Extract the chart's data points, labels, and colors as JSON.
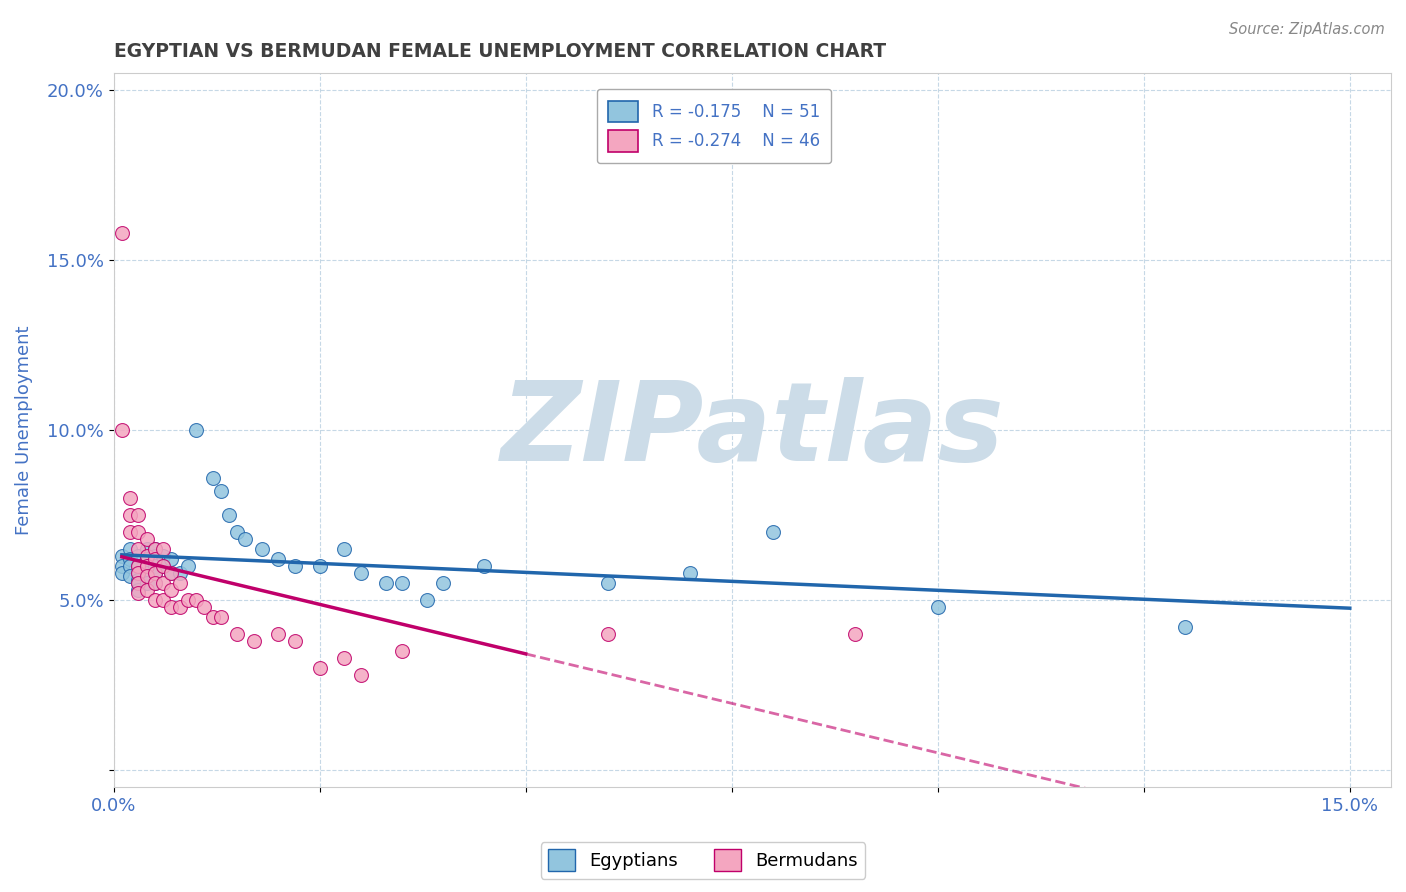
{
  "title": "EGYPTIAN VS BERMUDAN FEMALE UNEMPLOYMENT CORRELATION CHART",
  "source_text": "Source: ZipAtlas.com",
  "ylabel": "Female Unemployment",
  "xlim": [
    0.0,
    0.155
  ],
  "ylim": [
    -0.005,
    0.205
  ],
  "xticks": [
    0.0,
    0.025,
    0.05,
    0.075,
    0.1,
    0.125,
    0.15
  ],
  "xticklabels": [
    "0.0%",
    "",
    "",
    "",
    "",
    "",
    "15.0%"
  ],
  "yticks": [
    0.0,
    0.05,
    0.1,
    0.15,
    0.2
  ],
  "yticklabels": [
    "",
    "5.0%",
    "10.0%",
    "15.0%",
    "20.0%"
  ],
  "legend_r1": "R = -0.175",
  "legend_n1": "N = 51",
  "legend_r2": "R = -0.274",
  "legend_n2": "N = 46",
  "egyptian_color": "#92c5de",
  "bermudan_color": "#f4a6c0",
  "trend_egyptian_color": "#2166ac",
  "trend_bermudan_color": "#c0006a",
  "watermark_color": "#ccdce8",
  "title_color": "#404040",
  "tick_color": "#4472c4",
  "grid_color": "#b8cfe0",
  "background_color": "#ffffff",
  "egyptians_x": [
    0.001,
    0.001,
    0.001,
    0.002,
    0.002,
    0.002,
    0.002,
    0.003,
    0.003,
    0.003,
    0.003,
    0.003,
    0.003,
    0.004,
    0.004,
    0.004,
    0.004,
    0.004,
    0.005,
    0.005,
    0.005,
    0.005,
    0.005,
    0.006,
    0.006,
    0.007,
    0.007,
    0.008,
    0.009,
    0.01,
    0.012,
    0.013,
    0.014,
    0.015,
    0.016,
    0.018,
    0.02,
    0.022,
    0.025,
    0.028,
    0.03,
    0.033,
    0.035,
    0.038,
    0.04,
    0.045,
    0.06,
    0.07,
    0.08,
    0.1,
    0.13
  ],
  "egyptians_y": [
    0.063,
    0.06,
    0.058,
    0.065,
    0.062,
    0.06,
    0.057,
    0.063,
    0.06,
    0.058,
    0.056,
    0.055,
    0.053,
    0.065,
    0.062,
    0.06,
    0.058,
    0.055,
    0.065,
    0.063,
    0.06,
    0.058,
    0.055,
    0.063,
    0.06,
    0.062,
    0.058,
    0.058,
    0.06,
    0.1,
    0.086,
    0.082,
    0.075,
    0.07,
    0.068,
    0.065,
    0.062,
    0.06,
    0.06,
    0.065,
    0.058,
    0.055,
    0.055,
    0.05,
    0.055,
    0.06,
    0.055,
    0.058,
    0.07,
    0.048,
    0.042
  ],
  "bermudans_x": [
    0.001,
    0.001,
    0.002,
    0.002,
    0.002,
    0.003,
    0.003,
    0.003,
    0.003,
    0.003,
    0.003,
    0.003,
    0.004,
    0.004,
    0.004,
    0.004,
    0.004,
    0.005,
    0.005,
    0.005,
    0.005,
    0.005,
    0.006,
    0.006,
    0.006,
    0.006,
    0.007,
    0.007,
    0.007,
    0.008,
    0.008,
    0.009,
    0.01,
    0.011,
    0.012,
    0.013,
    0.015,
    0.017,
    0.02,
    0.022,
    0.025,
    0.028,
    0.03,
    0.035,
    0.06,
    0.09
  ],
  "bermudans_y": [
    0.158,
    0.1,
    0.08,
    0.075,
    0.07,
    0.075,
    0.07,
    0.065,
    0.06,
    0.058,
    0.055,
    0.052,
    0.068,
    0.063,
    0.06,
    0.057,
    0.053,
    0.065,
    0.062,
    0.058,
    0.055,
    0.05,
    0.065,
    0.06,
    0.055,
    0.05,
    0.058,
    0.053,
    0.048,
    0.055,
    0.048,
    0.05,
    0.05,
    0.048,
    0.045,
    0.045,
    0.04,
    0.038,
    0.04,
    0.038,
    0.03,
    0.033,
    0.028,
    0.035,
    0.04,
    0.04
  ]
}
